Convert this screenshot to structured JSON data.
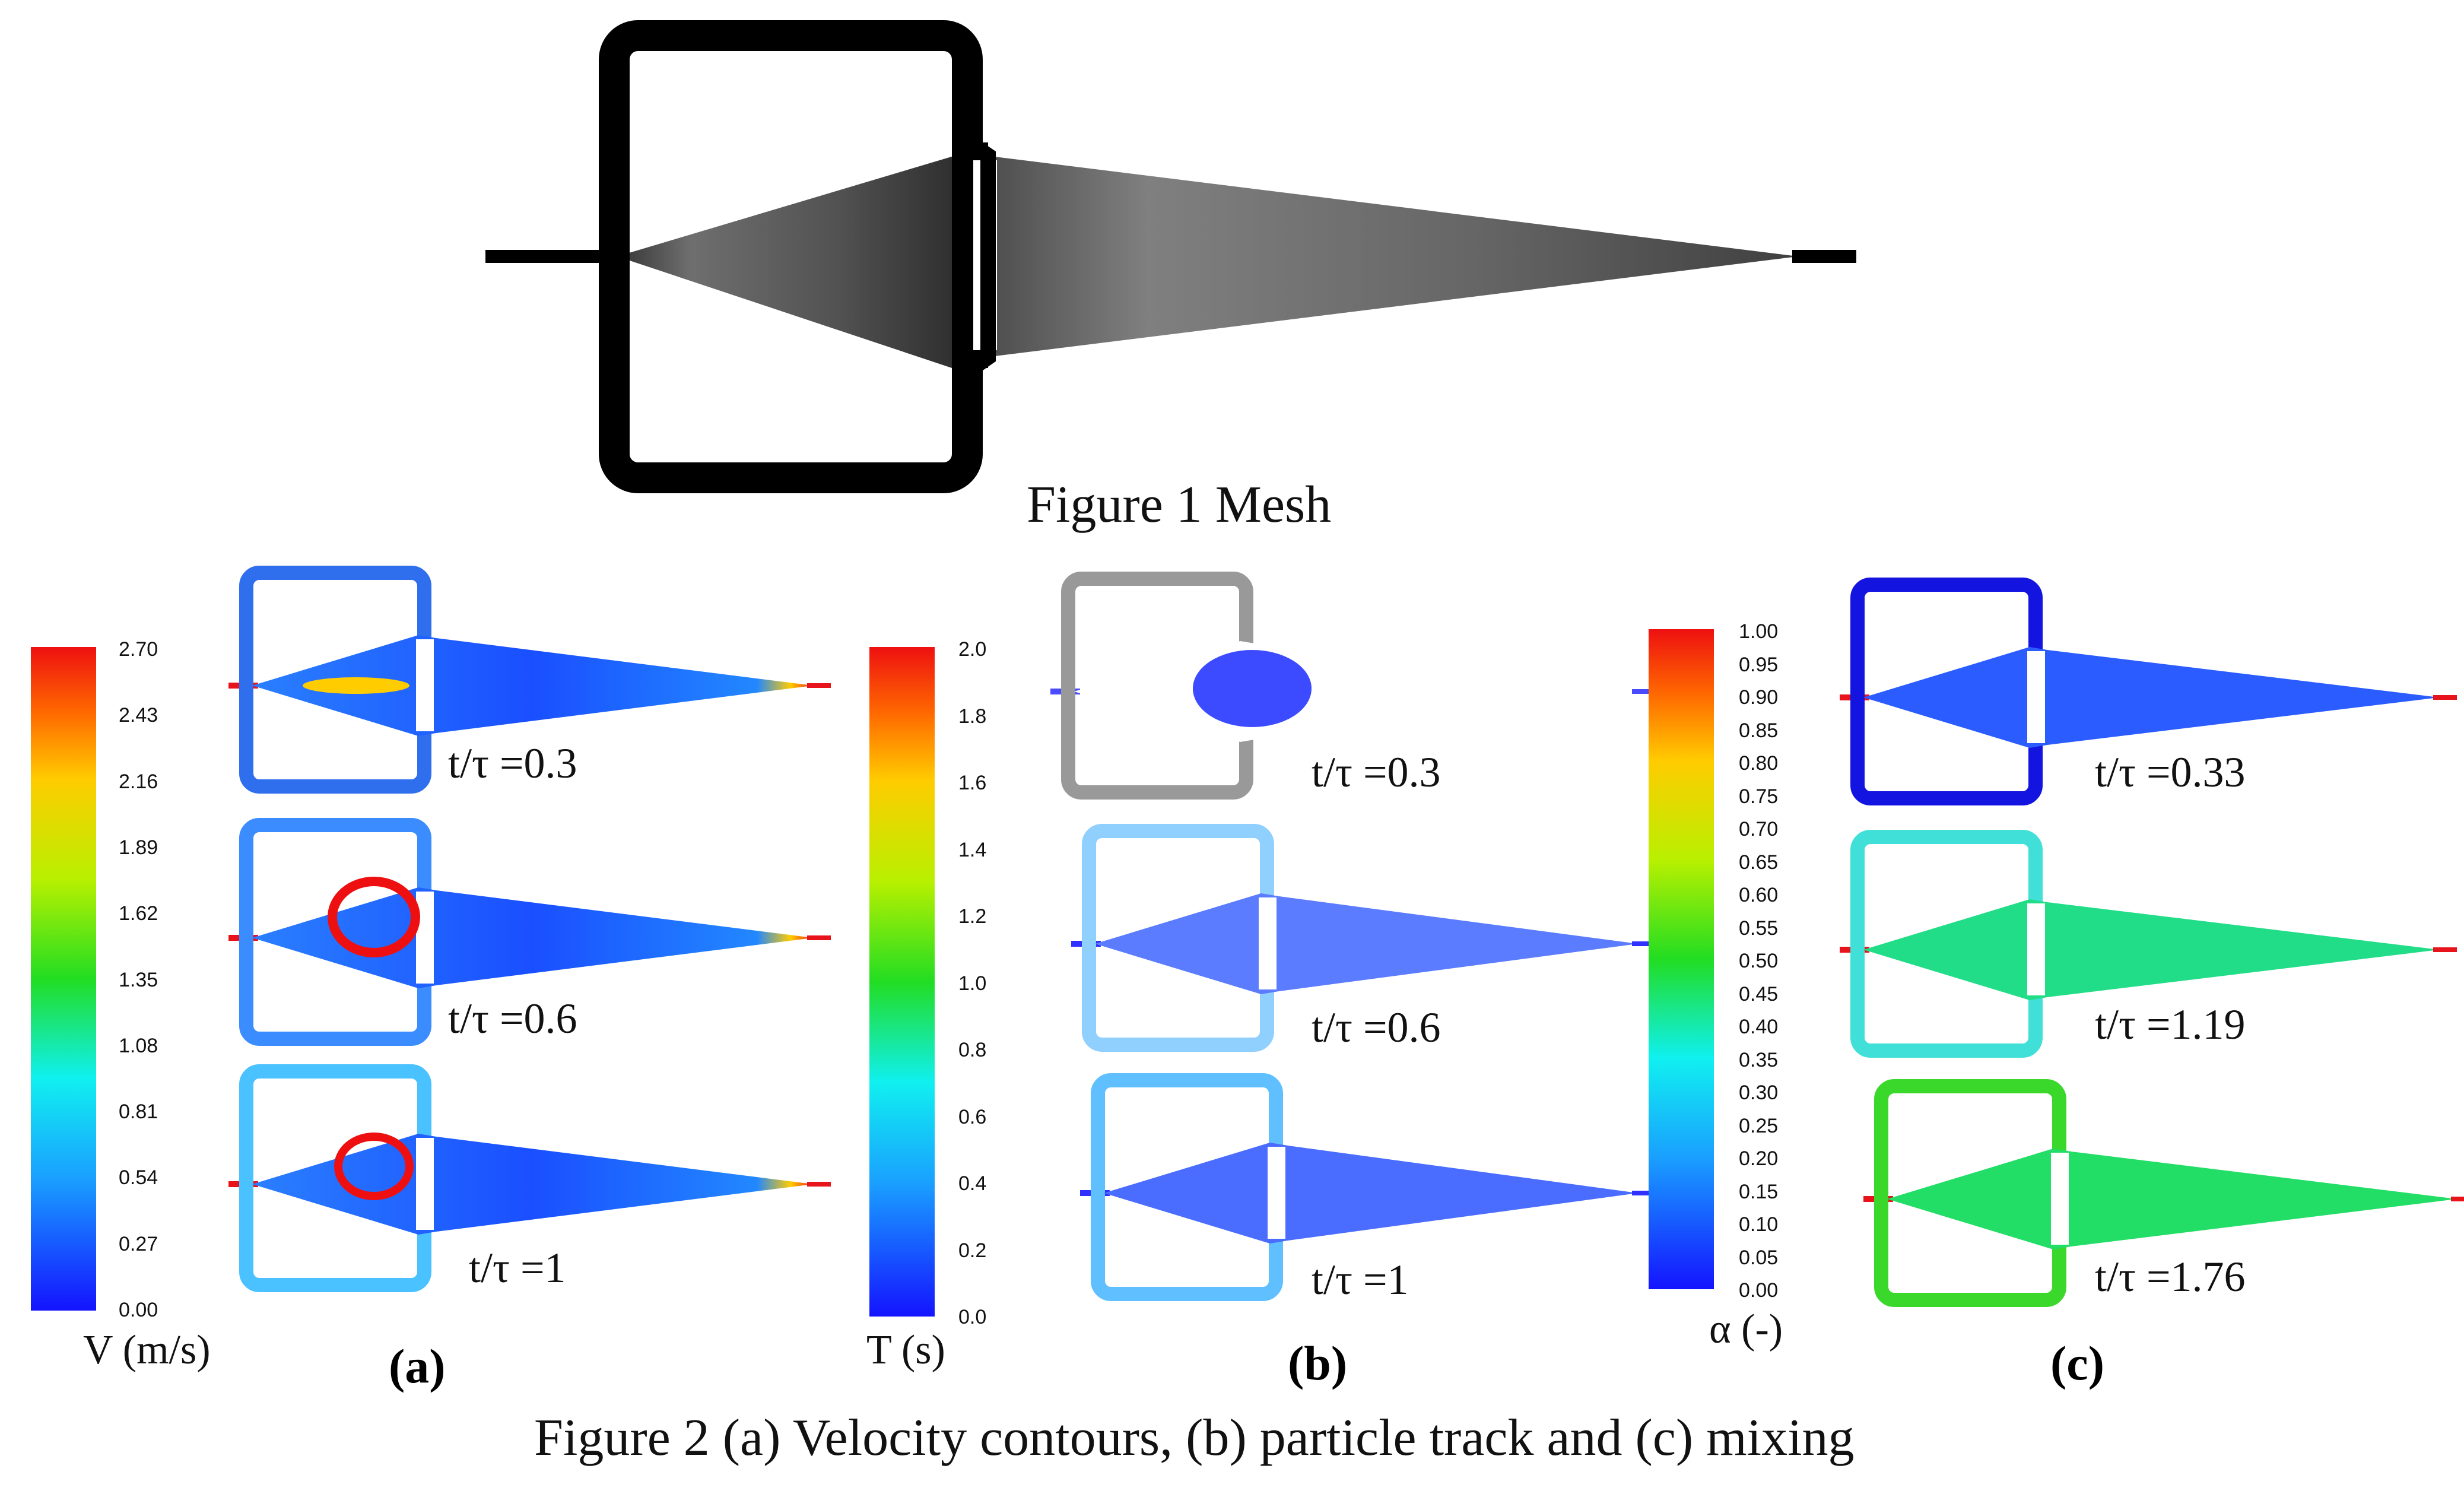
{
  "figure1": {
    "caption": "Figure 1 Mesh"
  },
  "figure2": {
    "caption": "Figure 2 (a) Velocity contours, (b) particle track and (c) mixing",
    "panels": [
      {
        "label": "(a)",
        "colorbar_title": "V (m/s)",
        "ticks": [
          "2.70",
          "2.43",
          "2.16",
          "1.89",
          "1.62",
          "1.35",
          "1.08",
          "0.81",
          "0.54",
          "0.27",
          "0.00"
        ],
        "times": [
          "t/τ =0.3",
          "t/τ =0.6",
          "t/τ =1"
        ]
      },
      {
        "label": "(b)",
        "colorbar_title": "T (s)",
        "ticks": [
          "2.0",
          "1.8",
          "1.6",
          "1.4",
          "1.2",
          "1.0",
          "0.8",
          "0.6",
          "0.4",
          "0.2",
          "0.0"
        ],
        "times": [
          "t/τ =0.3",
          "t/τ =0.6",
          "t/τ =1"
        ]
      },
      {
        "label": "(c)",
        "colorbar_title": "α (-)",
        "ticks": [
          "1.00",
          "0.95",
          "0.90",
          "0.85",
          "0.80",
          "0.75",
          "0.70",
          "0.65",
          "0.60",
          "0.55",
          "0.50",
          "0.45",
          "0.40",
          "0.35",
          "0.30",
          "0.25",
          "0.20",
          "0.15",
          "0.10",
          "0.05",
          "0.00"
        ],
        "times": [
          "t/τ =0.33",
          "t/τ =1.19",
          "t/τ =1.76"
        ]
      }
    ]
  },
  "colors": {
    "jet_red": "#e8141c",
    "jet_blue": "#1a1aff",
    "mesh": "#000000"
  }
}
